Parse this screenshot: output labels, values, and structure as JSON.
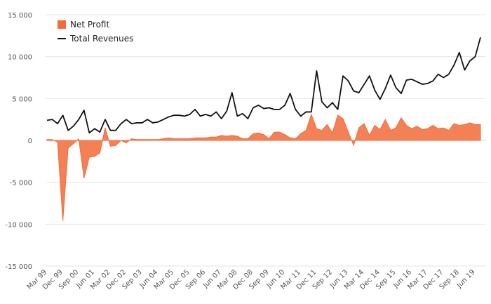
{
  "chart_data": {
    "type": "line",
    "title": "",
    "xlabel": "",
    "ylabel": "",
    "ylim": [
      -15000,
      15000
    ],
    "y_ticks": [
      15000,
      10000,
      5000,
      0,
      -5000,
      -10000,
      -15000
    ],
    "y_tick_labels": [
      "15 000",
      "10 000",
      "5 000",
      "0",
      "-5 000",
      "-10 000",
      "-15 000"
    ],
    "grid": "horizontal",
    "legend_position": "top-left",
    "x_tick_labels": [
      "Mar 99",
      "Dec 99",
      "Sep 00",
      "Jun 01",
      "Mar 02",
      "Dec 02",
      "Sep 03",
      "Jun 04",
      "Mar 05",
      "Dec 05",
      "Sep 06",
      "Jun 07",
      "Mar 08",
      "Dec 08",
      "Sep 09",
      "Jun 10",
      "Mar 11",
      "Dec 11",
      "Sep 12",
      "Jun 13",
      "Mar 14",
      "Dec 14",
      "Sep 15",
      "Jun 16",
      "Mar 17",
      "Dec 17",
      "Sep 18",
      "Jun 19"
    ],
    "x": [
      "Mar 99",
      "Jun 99",
      "Sep 99",
      "Dec 99",
      "Mar 00",
      "Jun 00",
      "Sep 00",
      "Dec 00",
      "Mar 01",
      "Jun 01",
      "Sep 01",
      "Dec 01",
      "Mar 02",
      "Jun 02",
      "Sep 02",
      "Dec 02",
      "Mar 03",
      "Jun 03",
      "Sep 03",
      "Dec 03",
      "Mar 04",
      "Jun 04",
      "Sep 04",
      "Dec 04",
      "Mar 05",
      "Jun 05",
      "Sep 05",
      "Dec 05",
      "Mar 06",
      "Jun 06",
      "Sep 06",
      "Dec 06",
      "Mar 07",
      "Jun 07",
      "Sep 07",
      "Dec 07",
      "Mar 08",
      "Jun 08",
      "Sep 08",
      "Dec 08",
      "Mar 09",
      "Jun 09",
      "Sep 09",
      "Dec 09",
      "Mar 10",
      "Jun 10",
      "Sep 10",
      "Dec 10",
      "Mar 11",
      "Jun 11",
      "Sep 11",
      "Dec 11",
      "Mar 12",
      "Jun 12",
      "Sep 12",
      "Dec 12",
      "Mar 13",
      "Jun 13",
      "Sep 13",
      "Dec 13",
      "Mar 14",
      "Jun 14",
      "Sep 14",
      "Dec 14",
      "Mar 15",
      "Jun 15",
      "Sep 15",
      "Dec 15",
      "Mar 16",
      "Jun 16",
      "Sep 16",
      "Dec 16",
      "Mar 17",
      "Jun 17",
      "Sep 17",
      "Dec 17",
      "Mar 18",
      "Jun 18",
      "Sep 18",
      "Dec 18",
      "Mar 19",
      "Jun 19",
      "Sep 19"
    ],
    "series": [
      {
        "name": "Net Profit",
        "kind": "area",
        "color": "#f26b38",
        "values": [
          100,
          100,
          -200,
          -9600,
          -900,
          -400,
          200,
          -4500,
          -2000,
          -1900,
          -1500,
          1500,
          -700,
          -600,
          0,
          -300,
          200,
          100,
          100,
          100,
          100,
          100,
          200,
          300,
          200,
          200,
          200,
          200,
          300,
          300,
          300,
          400,
          400,
          600,
          500,
          600,
          500,
          200,
          200,
          800,
          900,
          700,
          200,
          1000,
          1000,
          700,
          300,
          200,
          800,
          1200,
          3100,
          1400,
          1200,
          1900,
          900,
          3000,
          2600,
          1000,
          -600,
          1500,
          2000,
          600,
          1800,
          1300,
          2500,
          1200,
          1500,
          2700,
          1800,
          1400,
          1700,
          1300,
          1400,
          1800,
          1400,
          1500,
          1200,
          2000,
          1800,
          1900,
          2100,
          1900,
          1900
        ]
      },
      {
        "name": "Total Revenues",
        "kind": "line",
        "color": "#111111",
        "values": [
          2400,
          2500,
          2000,
          3000,
          1200,
          1700,
          2500,
          3600,
          900,
          1400,
          1000,
          2500,
          1200,
          1200,
          2000,
          2500,
          2000,
          2100,
          2100,
          2500,
          2100,
          2200,
          2500,
          2800,
          3000,
          3000,
          2900,
          3100,
          3700,
          2900,
          3100,
          2900,
          3400,
          2600,
          3500,
          5700,
          2900,
          3200,
          2600,
          3900,
          4200,
          3800,
          3900,
          3700,
          3700,
          4200,
          5600,
          3700,
          2900,
          3400,
          3400,
          8300,
          4600,
          3900,
          4500,
          3700,
          7700,
          7100,
          5900,
          5700,
          6700,
          7700,
          6000,
          4900,
          6200,
          7800,
          6300,
          5600,
          7200,
          7300,
          7000,
          6700,
          6800,
          7100,
          7900,
          7500,
          7900,
          9000,
          10500,
          8400,
          9500,
          10000,
          12300
        ]
      }
    ]
  }
}
